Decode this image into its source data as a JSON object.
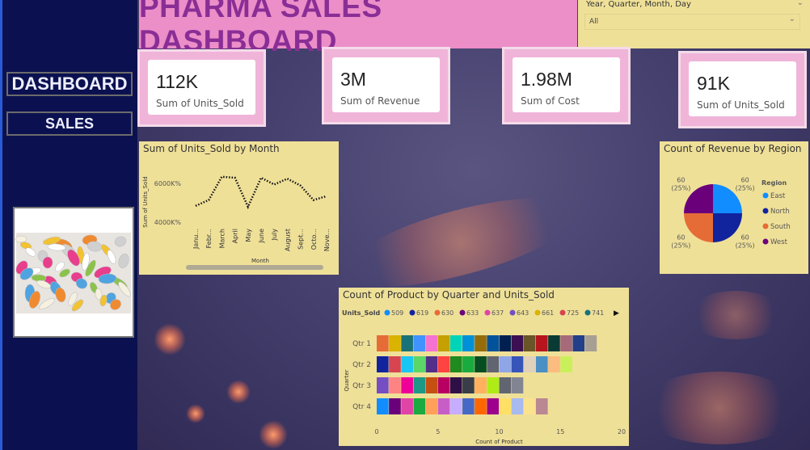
{
  "sidebar": {
    "buttons": [
      "DASHBOARD",
      "SALES"
    ]
  },
  "header": {
    "title": "PHARMA SALES DASHBOARD"
  },
  "slicer": {
    "label": "Year, Quarter, Month, Day",
    "value": "All"
  },
  "kpis": [
    {
      "value": "112K",
      "label": "Sum of Units_Sold"
    },
    {
      "value": "3M",
      "label": "Sum of Revenue"
    },
    {
      "value": "1.98M",
      "label": "Sum of Cost"
    },
    {
      "value": "91K",
      "label": "Sum of Units_Sold"
    }
  ],
  "colors": {
    "sidebar": "#0b1150",
    "header": "#ec8ec8",
    "title": "#8a2e96",
    "panel": "#efe098",
    "kpi": "#f0b4d9"
  },
  "chart_data": [
    {
      "type": "line",
      "title": "Sum of Units_Sold by Month",
      "xlabel": "Month",
      "ylabel": "Sum of Units_Sold",
      "categories": [
        "Janu...",
        "Febr...",
        "March",
        "April",
        "May",
        "June",
        "July",
        "August",
        "Sept...",
        "Octo...",
        "Nove..."
      ],
      "values": [
        4800,
        5100,
        6300,
        6250,
        4750,
        6250,
        5900,
        6200,
        5850,
        5100,
        5300
      ],
      "yticks": [
        "6000K%",
        "4000K%"
      ],
      "ylim": [
        4000,
        6000
      ]
    },
    {
      "type": "pie",
      "title": "Count of Revenue by Region",
      "legend_title": "Region",
      "slices": [
        {
          "name": "East",
          "value": 60,
          "label": "60\n(25%)",
          "color": "#118dff"
        },
        {
          "name": "North",
          "value": 60,
          "label": "60\n(25%)",
          "color": "#12239e"
        },
        {
          "name": "South",
          "value": 60,
          "label": "60\n(25%)",
          "color": "#e66c37"
        },
        {
          "name": "West",
          "value": 60,
          "label": "60\n(25%)",
          "color": "#6b007b"
        }
      ],
      "labels": [
        "60",
        "(25%)"
      ]
    },
    {
      "type": "bar",
      "orientation": "horizontal",
      "stacked": true,
      "title": "Count of Product by Quarter and Units_Sold",
      "xlabel": "Count of Product",
      "ylabel": "Quarter",
      "xlim": [
        0,
        20
      ],
      "xticks": [
        "0",
        "5",
        "10",
        "15",
        "20"
      ],
      "legend_title": "Units_Sold",
      "legend": [
        {
          "name": "509",
          "color": "#118dff"
        },
        {
          "name": "619",
          "color": "#12239e"
        },
        {
          "name": "630",
          "color": "#e66c37"
        },
        {
          "name": "633",
          "color": "#6b007b"
        },
        {
          "name": "637",
          "color": "#e044a7"
        },
        {
          "name": "643",
          "color": "#744ec2"
        },
        {
          "name": "661",
          "color": "#d9b300"
        },
        {
          "name": "725",
          "color": "#d64550"
        },
        {
          "name": "741",
          "color": "#197278"
        }
      ],
      "categories": [
        "Qtr 1",
        "Qtr 2",
        "Qtr 3",
        "Qtr 4"
      ],
      "segments": [
        [
          "#e66c37",
          "#d9b300",
          "#197278",
          "#4092ff",
          "#f472d0",
          "#c4a000",
          "#00d4b8",
          "#0090d8",
          "#946c0a",
          "#00539b",
          "#002050",
          "#3c0f52",
          "#6a5528",
          "#b6151e",
          "#0b3a35",
          "#a66a7a",
          "#233f8a",
          "#a89f94"
        ],
        [
          "#12239e",
          "#d64550",
          "#1ac6f2",
          "#5bd667",
          "#532f8a",
          "#ff4242",
          "#1f8a1f",
          "#1aab40",
          "#074d22",
          "#606571",
          "#8ea5e8",
          "#3755b8",
          "#e0d1bc",
          "#4a90c4",
          "#fbbc80",
          "#c9f05a"
        ],
        [
          "#744ec2",
          "#fe8383",
          "#ee0099",
          "#1d9786",
          "#c55011",
          "#b80062",
          "#2f0f47",
          "#393d47",
          "#ffb15e",
          "#aeec17",
          "#606571",
          "#828591"
        ],
        [
          "#118dff",
          "#6b007b",
          "#e044a7",
          "#1aab40",
          "#ffa05a",
          "#c75ec8",
          "#c6adff",
          "#4669c5",
          "#ff6600",
          "#9c008c",
          "#ffe066",
          "#a8baf0",
          "#fbe28e",
          "#b98892"
        ]
      ]
    }
  ]
}
